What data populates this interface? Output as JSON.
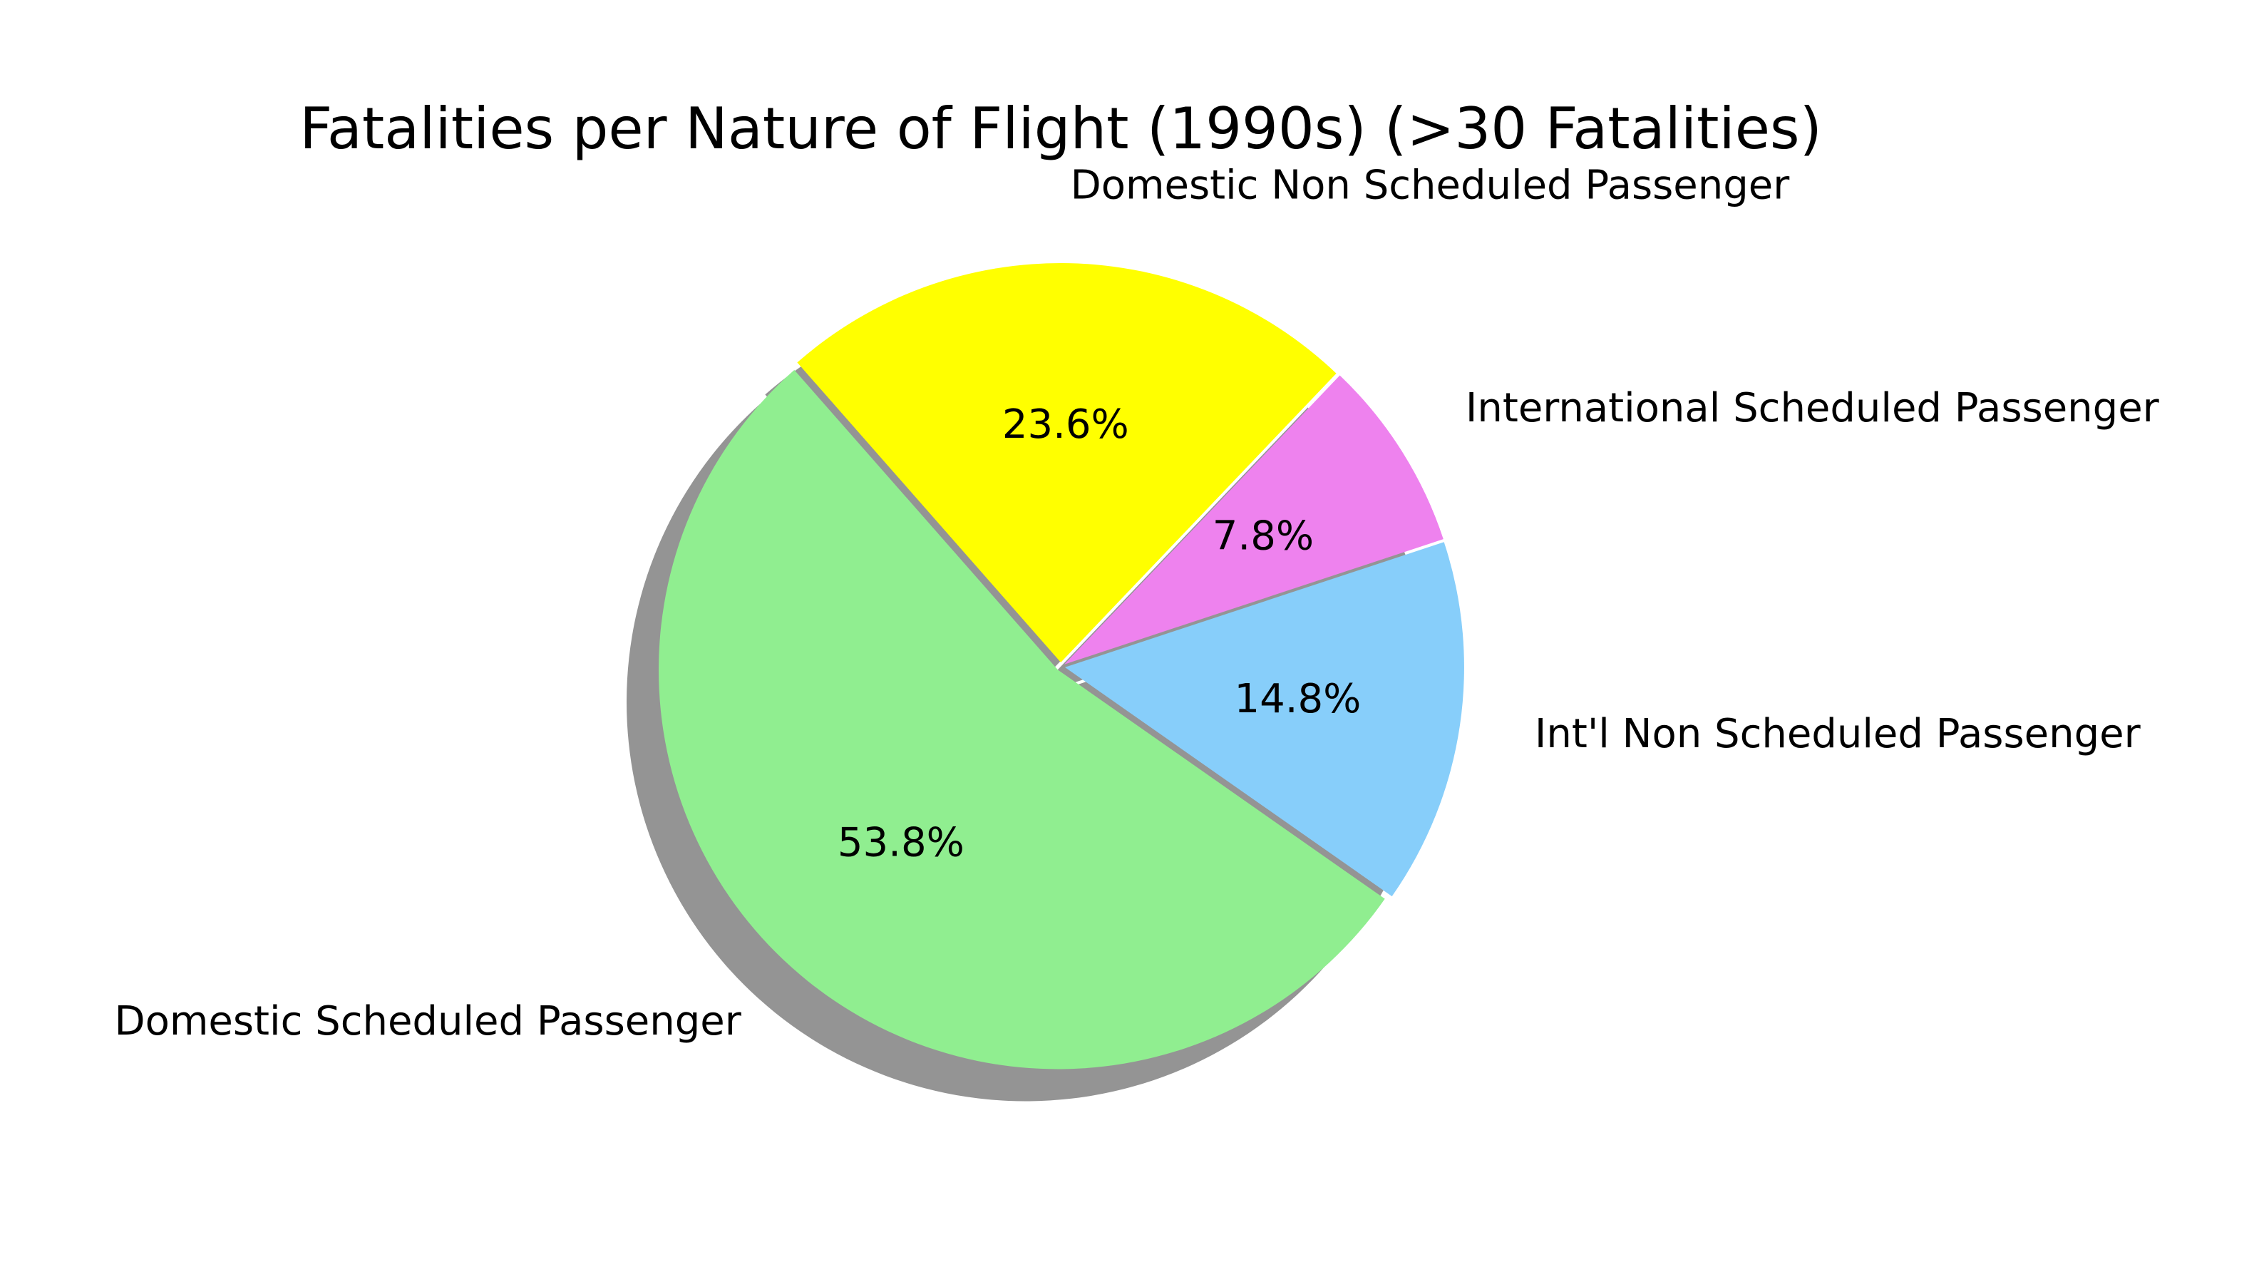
{
  "chart_data": {
    "type": "pie",
    "title": "Fatalities per Nature of Flight (1990s) (>30 Fatalities)",
    "slices": [
      {
        "label": "Int'l Non Scheduled Passenger",
        "percent": 14.8,
        "percent_label": "14.8%",
        "color": "#87CEFA"
      },
      {
        "label": "International Scheduled Passenger",
        "percent": 7.8,
        "percent_label": "7.8%",
        "color": "#EE82EE"
      },
      {
        "label": "Domestic Non Scheduled Passenger",
        "percent": 23.6,
        "percent_label": "23.6%",
        "color": "#FFFF00"
      },
      {
        "label": "Domestic Scheduled Passenger",
        "percent": 53.8,
        "percent_label": "53.8%",
        "color": "#90EE90"
      }
    ],
    "start_angle_deg": -35,
    "direction": "counterclockwise",
    "shadow": true,
    "legend": "none"
  }
}
